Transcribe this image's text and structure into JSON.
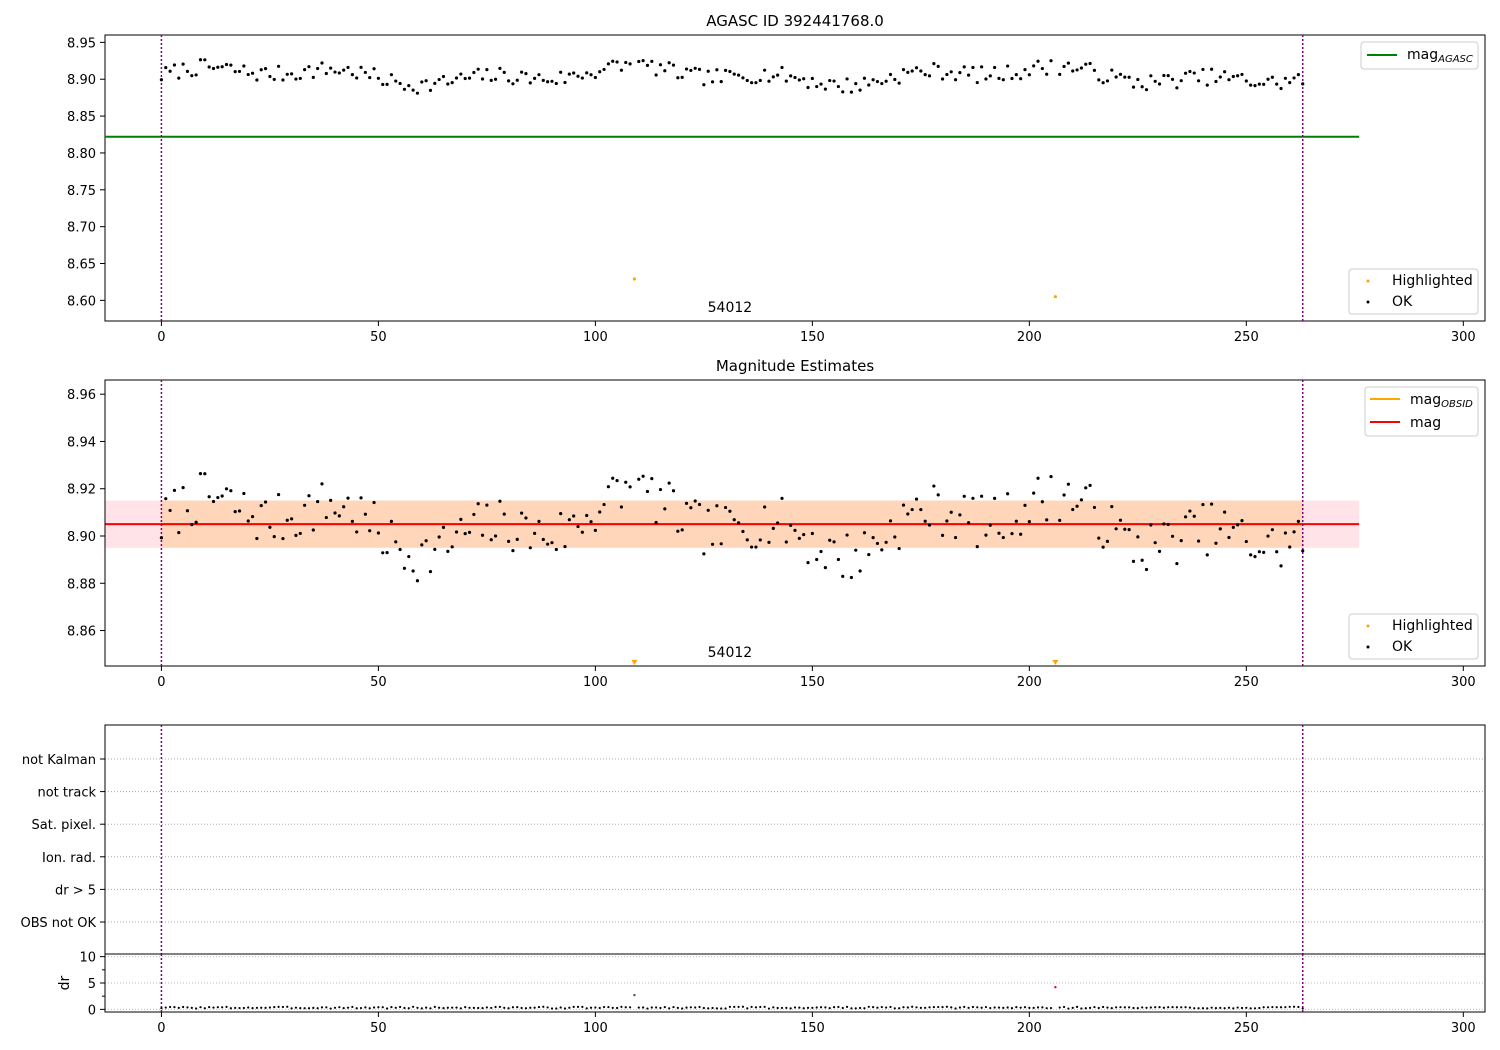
{
  "chart_data": [
    {
      "type": "scatter",
      "title": "AGASC ID 392441768.0",
      "xlim": [
        -13,
        305
      ],
      "ylim": [
        8.572,
        8.96
      ],
      "x_ticks": [
        0,
        50,
        100,
        150,
        200,
        250,
        300
      ],
      "y_ticks": [
        8.6,
        8.65,
        8.7,
        8.75,
        8.8,
        8.85,
        8.9,
        8.95
      ],
      "vlines": [
        0,
        263
      ],
      "obsid_label": "54012",
      "obsid_label_x": 131,
      "ref_line": {
        "name": "mag",
        "name_sub": "AGASC",
        "value": 8.822,
        "x_range": [
          -13,
          276
        ],
        "color": "#008000"
      },
      "highlighted": {
        "name": "Highlighted",
        "color": "#ffa500",
        "points": [
          [
            109,
            8.629
          ],
          [
            206,
            8.605
          ]
        ]
      },
      "ok": {
        "name": "OK",
        "color": "#000000"
      },
      "legend_positions": [
        "top-right",
        "bottom-right"
      ]
    },
    {
      "type": "scatter",
      "title": "Magnitude Estimates",
      "xlim": [
        -13,
        305
      ],
      "ylim": [
        8.845,
        8.966
      ],
      "x_ticks": [
        0,
        50,
        100,
        150,
        200,
        250,
        300
      ],
      "y_ticks": [
        8.86,
        8.88,
        8.9,
        8.92,
        8.94,
        8.96
      ],
      "vlines": [
        0,
        263
      ],
      "obsid_label": "54012",
      "obsid_label_x": 131,
      "mag_line": {
        "name": "mag",
        "value": 8.905,
        "band": [
          8.895,
          8.915
        ],
        "x_range": [
          -13,
          276
        ],
        "color": "#ff0000",
        "band_color": "#ffc0cb"
      },
      "obsid_line": {
        "name": "mag",
        "name_sub": "OBSID",
        "value": 8.905,
        "band": [
          8.895,
          8.915
        ],
        "x_range": [
          0,
          263
        ],
        "color": "#ffa500"
      },
      "highlighted": {
        "name": "Highlighted",
        "color": "#ffa500",
        "marker": "triangle-down",
        "x": [
          109,
          206
        ]
      },
      "ok": {
        "name": "OK",
        "color": "#000000"
      },
      "legend_positions": [
        "top-right",
        "bottom-right"
      ]
    },
    {
      "type": "scatter",
      "title": "",
      "xlim": [
        -13,
        305
      ],
      "categories": [
        "not Kalman",
        "not track",
        "Sat. pixel.",
        "Ion. rad.",
        "dr > 5",
        "OBS not OK"
      ],
      "vlines": [
        0,
        263
      ],
      "grid": "dotted"
    },
    {
      "type": "scatter",
      "title": "",
      "ylabel": "dr",
      "xlim": [
        -13,
        305
      ],
      "ylim": [
        -0.5,
        10.5
      ],
      "x_ticks": [
        0,
        50,
        100,
        150,
        200,
        250,
        300
      ],
      "y_ticks": [
        0,
        5,
        10
      ],
      "vlines": [
        0,
        263
      ],
      "highlighted_points": [
        [
          109,
          2.7
        ],
        [
          206,
          4.2
        ]
      ],
      "highlighted_colors": [
        "#555555",
        "#ff0000"
      ]
    }
  ]
}
